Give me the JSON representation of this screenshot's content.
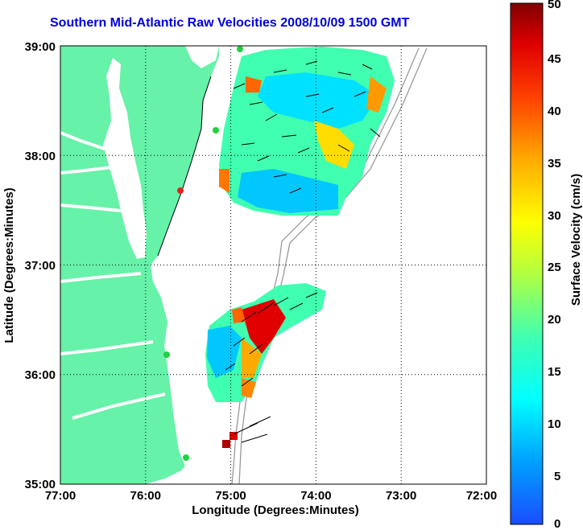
{
  "title": "Southern Mid-Atlantic Raw Velocities 2008/10/09 1500 GMT",
  "x_axis": {
    "label": "Longitude (Degrees:Minutes)",
    "ticks": [
      "77:00",
      "76:00",
      "75:00",
      "74:00",
      "73:00",
      "72:00"
    ]
  },
  "y_axis": {
    "label": "Latitude (Degrees:Minutes)",
    "ticks": [
      "39:00",
      "38:00",
      "37:00",
      "36:00",
      "35:00"
    ]
  },
  "colorbar": {
    "label": "Surface Velocity (cm/s)",
    "ticks": [
      "50",
      "45",
      "40",
      "35",
      "30",
      "25",
      "20",
      "15",
      "10",
      "5",
      "0"
    ],
    "min": 0,
    "max": 50
  },
  "colors": {
    "land": "#66f2a8",
    "title": "#0000dd",
    "grid": "#000000"
  }
}
